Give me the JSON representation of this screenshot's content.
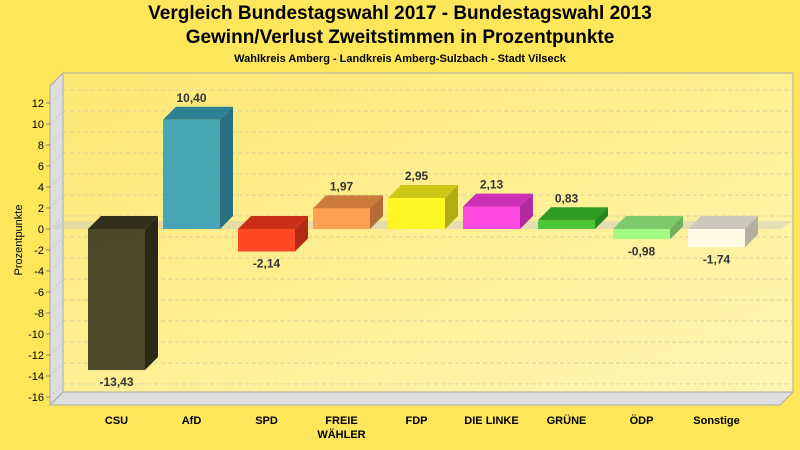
{
  "chart_data": {
    "type": "bar",
    "title": "Vergleich Bundestagswahl 2017 - Bundestagswahl 2013",
    "subtitle": "Gewinn/Verlust Zweitstimmen in Prozentpunkte",
    "subsubtitle": "Wahlkreis Amberg - Landkreis Amberg-Sulzbach - Stadt Vilseck",
    "xlabel": "",
    "ylabel": "Prozentpunkte",
    "ylim": [
      -16,
      12
    ],
    "yticks": [
      12,
      10,
      8,
      6,
      4,
      2,
      0,
      -2,
      -4,
      -6,
      -8,
      -10,
      -12,
      -14,
      -16
    ],
    "grid": true,
    "categories": [
      [
        "CSU"
      ],
      [
        "AfD"
      ],
      [
        "SPD"
      ],
      [
        "FREIE",
        "WÄHLER"
      ],
      [
        "FDP"
      ],
      [
        "DIE LINKE"
      ],
      [
        "GRÜNE"
      ],
      [
        "ÖDP"
      ],
      [
        "Sonstige"
      ]
    ],
    "values": [
      -13.43,
      10.4,
      -2.14,
      1.97,
      2.95,
      2.13,
      0.83,
      -0.98,
      -1.74
    ],
    "value_labels": [
      "-13,43",
      "10,40",
      "-2,14",
      "1,97",
      "2,95",
      "2,13",
      "0,83",
      "-0,98",
      "-1,74"
    ],
    "colors": [
      "#3d3a1f",
      "#3aa0b8",
      "#ff3a1c",
      "#ff9a4c",
      "#fff71c",
      "#ff3be6",
      "#3cc22c",
      "#9dfc84",
      "#fffbe8"
    ],
    "style": "3d"
  }
}
